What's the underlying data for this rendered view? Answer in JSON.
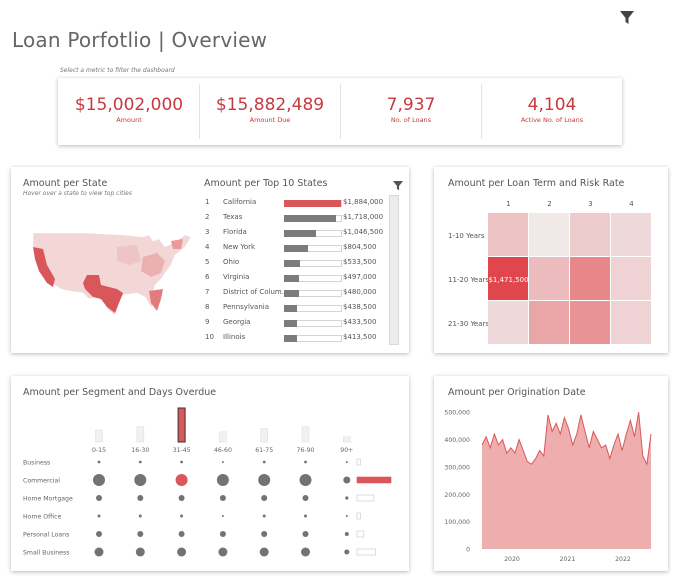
{
  "header": {
    "title": "Loan Porfotlio | Overview",
    "hint": "Select a metric to filter the dashboard",
    "filter_icon": "funnel-icon"
  },
  "kpis": [
    {
      "value": "$15,002,000",
      "label": "Amount"
    },
    {
      "value": "$15,882,489",
      "label": "Amount Due"
    },
    {
      "value": "7,937",
      "label": "No. of Loans"
    },
    {
      "value": "4,104",
      "label": "Active No. of Loans"
    }
  ],
  "state_card": {
    "title": "Amount per State",
    "hint": "Hover over a state to view top cities",
    "top_title": "Amount per Top 10 States",
    "filter_icon": "funnel-icon"
  },
  "heatmap_card": {
    "title": "Amount per Loan Term and Risk Rate"
  },
  "segment_card": {
    "title": "Amount per Segment and Days Overdue"
  },
  "origination_card": {
    "title": "Amount per Origination Date"
  },
  "colors": {
    "accent": "#d9575b",
    "bar_gray": "#7b7b7b",
    "area": "#eeaeae"
  },
  "chart_data": [
    {
      "type": "bar",
      "title": "Amount per Top 10 States",
      "ranks": [
        "1",
        "2",
        "3",
        "4",
        "5",
        "6",
        "7",
        "8",
        "9",
        "10"
      ],
      "categories": [
        "California",
        "Texas",
        "Florida",
        "New York",
        "Ohio",
        "Virginia",
        "District of Colum..",
        "Pennsylvania",
        "Georgia",
        "Illinois"
      ],
      "values": [
        1884000,
        1718000,
        1046500,
        804500,
        533500,
        497000,
        480000,
        438500,
        433500,
        413500
      ],
      "value_labels": [
        "$1,884,000",
        "$1,718,000",
        "$1,046,500",
        "$804,500",
        "$533,500",
        "$497,000",
        "$480,000",
        "$438,500",
        "$433,500",
        "$413,500"
      ]
    },
    {
      "type": "heatmap",
      "title": "Amount per Loan Term and Risk Rate",
      "columns": [
        "1",
        "2",
        "3",
        "4"
      ],
      "rows": [
        "1-10 Years",
        "11-20 Years",
        "21-30 Years"
      ],
      "values": [
        [
          0.28,
          0.06,
          0.22,
          0.15
        ],
        [
          1.0,
          0.32,
          0.62,
          0.18
        ],
        [
          0.15,
          0.45,
          0.55,
          0.18
        ]
      ],
      "highlight_label": "$1,471,500"
    },
    {
      "type": "scatter",
      "title": "Amount per Segment and Days Overdue",
      "columns": [
        "0-15",
        "16-30",
        "31-45",
        "46-60",
        "61-75",
        "76-90",
        "90+"
      ],
      "rows": [
        "Business",
        "Commercial",
        "Home Mortgage",
        "Home Office",
        "Personal Loans",
        "Small Business"
      ],
      "column_totals": [
        0.35,
        0.45,
        1.0,
        0.3,
        0.4,
        0.45,
        0.15
      ],
      "sizes": [
        [
          1.4,
          1.4,
          1.4,
          1.0,
          1.4,
          1.4,
          1.0
        ],
        [
          6.0,
          6.0,
          6.0,
          6.0,
          6.0,
          6.0,
          3.5
        ],
        [
          3.0,
          3.0,
          3.0,
          3.0,
          3.0,
          3.0,
          1.6
        ],
        [
          1.5,
          1.5,
          1.5,
          1.0,
          1.5,
          1.5,
          1.0
        ],
        [
          3.0,
          3.0,
          3.0,
          3.0,
          3.0,
          3.0,
          2.0
        ],
        [
          4.5,
          4.5,
          4.5,
          4.5,
          4.5,
          4.5,
          2.5
        ]
      ],
      "row_totals": [
        0.05,
        1.0,
        0.5,
        0.05,
        0.2,
        0.55
      ],
      "highlight": {
        "row": 1,
        "column": 2
      }
    },
    {
      "type": "area",
      "title": "Amount per Origination Date",
      "x_ticks": [
        "2020",
        "2021",
        "2022"
      ],
      "y_ticks": [
        "500,000",
        "400,000",
        "300,000",
        "200,000",
        "100,000",
        "0"
      ],
      "ylim": [
        0,
        530000
      ],
      "values": [
        380000,
        410000,
        370000,
        420000,
        380000,
        400000,
        350000,
        370000,
        350000,
        400000,
        360000,
        320000,
        310000,
        330000,
        360000,
        340000,
        490000,
        430000,
        460000,
        420000,
        480000,
        440000,
        380000,
        420000,
        490000,
        430000,
        370000,
        430000,
        400000,
        370000,
        380000,
        330000,
        380000,
        420000,
        360000,
        420000,
        470000,
        410000,
        500000,
        340000,
        310000,
        420000
      ]
    }
  ]
}
